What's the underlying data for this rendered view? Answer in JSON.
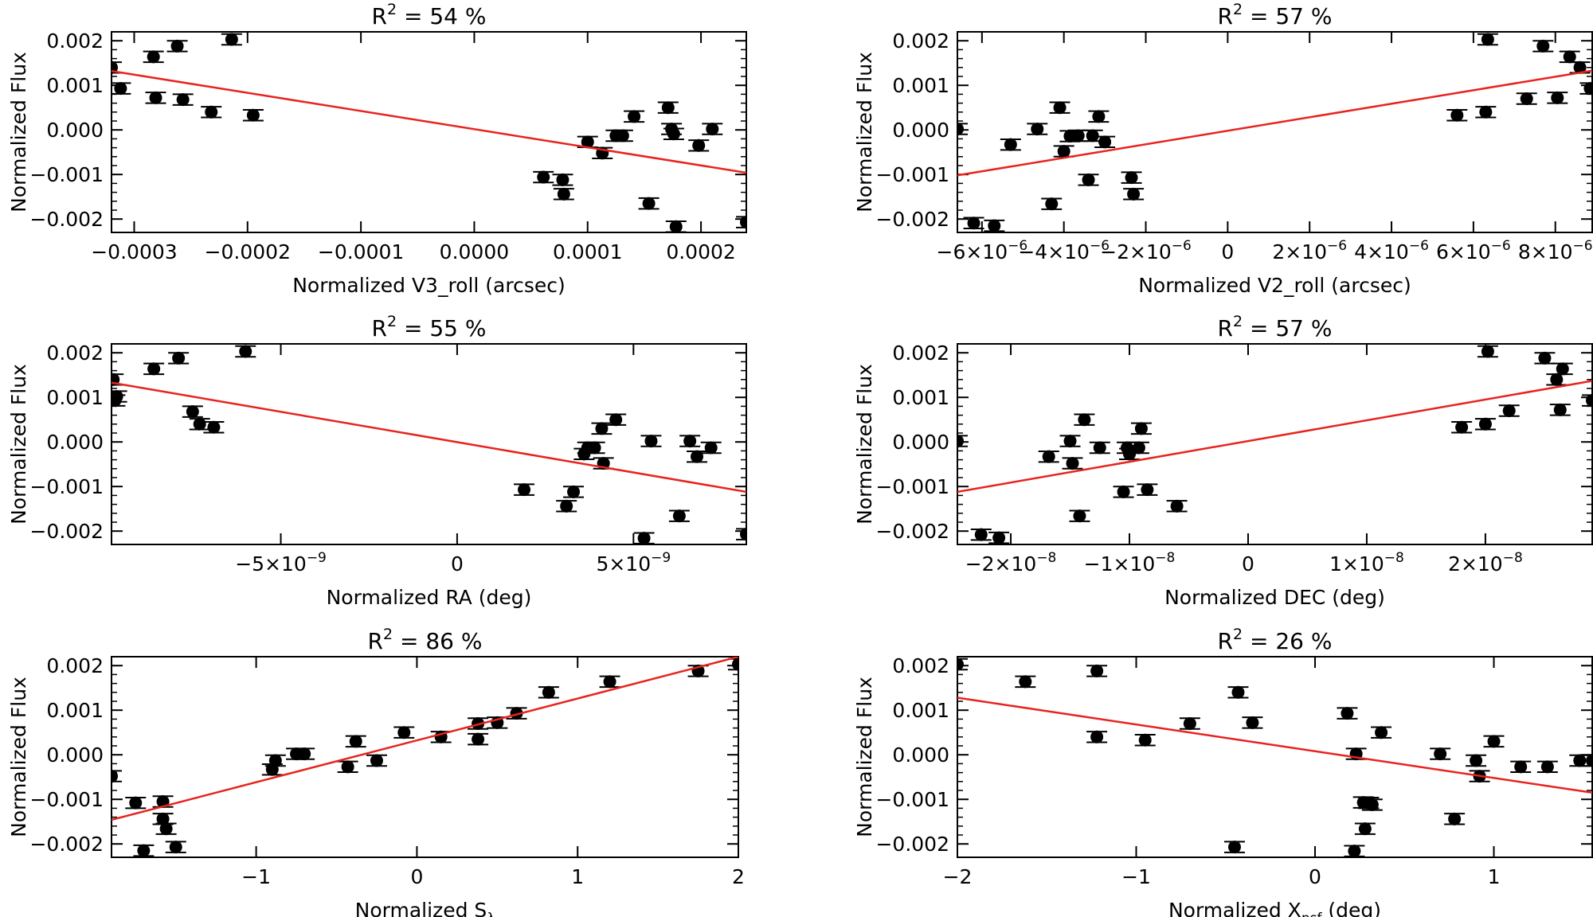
{
  "chart_data": [
    {
      "type": "scatter",
      "title": "R² = 54 %",
      "title_parts": {
        "pre": "R",
        "sup": "2",
        "post": " = 54 %"
      },
      "xlabel": "Normalized V3_roll (arcsec)",
      "xlabel_parts": {
        "pre": "Normalized V3_roll (arcsec)",
        "sub": "",
        "post": ""
      },
      "ylabel": "Normalized Flux",
      "xlim": [
        -0.00032,
        0.00024
      ],
      "ylim": [
        -0.0023,
        0.0022
      ],
      "xticks": [
        {
          "v": -0.0003,
          "label": "−0.0003"
        },
        {
          "v": -0.0002,
          "label": "−0.0002"
        },
        {
          "v": -0.0001,
          "label": "−0.0001"
        },
        {
          "v": 0.0,
          "label": "0.0000"
        },
        {
          "v": 0.0001,
          "label": "0.0001"
        },
        {
          "v": 0.0002,
          "label": "0.0002"
        }
      ],
      "yticks": [
        {
          "v": 0.002,
          "label": "0.002"
        },
        {
          "v": 0.001,
          "label": "0.001"
        },
        {
          "v": 0.0,
          "label": "0.000"
        },
        {
          "v": -0.001,
          "label": "−0.001"
        },
        {
          "v": -0.002,
          "label": "−0.002"
        }
      ],
      "points": [
        [
          -0.00032,
          0.0014
        ],
        [
          -0.000312,
          0.00093
        ],
        [
          -0.000283,
          0.00164
        ],
        [
          -0.000262,
          0.00188
        ],
        [
          -0.000281,
          0.00072
        ],
        [
          -0.000257,
          0.00068
        ],
        [
          -0.000232,
          0.0004
        ],
        [
          -0.000214,
          0.00203
        ],
        [
          -0.000195,
          0.00033
        ],
        [
          6.1e-05,
          -0.00106
        ],
        [
          7.8e-05,
          -0.00112
        ],
        [
          7.9e-05,
          -0.00144
        ],
        [
          0.0001,
          -0.00027
        ],
        [
          0.000113,
          -0.00052
        ],
        [
          0.000125,
          -0.00013
        ],
        [
          0.000131,
          -0.00013
        ],
        [
          0.000141,
          0.0003
        ],
        [
          0.000154,
          -0.00165
        ],
        [
          0.000171,
          0.0005
        ],
        [
          0.000174,
          2e-05
        ],
        [
          0.000176,
          -9e-05
        ],
        [
          0.000178,
          -0.00217
        ],
        [
          0.000198,
          -0.00035
        ],
        [
          0.00021,
          2e-05
        ],
        [
          0.00024,
          -0.00207
        ]
      ],
      "fit": [
        [
          -0.00032,
          0.00132
        ],
        [
          0.00024,
          -0.00096
        ]
      ],
      "colors": {
        "points": "#000000",
        "fit": "#e8231e"
      }
    },
    {
      "type": "scatter",
      "title": "R² = 57 %",
      "title_parts": {
        "pre": "R",
        "sup": "2",
        "post": " = 57 %"
      },
      "xlabel": "Normalized V2_roll (arcsec)",
      "xlabel_parts": {
        "pre": "Normalized V2_roll (arcsec)",
        "sub": "",
        "post": ""
      },
      "ylabel": "Normalized Flux",
      "xlim": [
        -6.6e-06,
        8.9e-06
      ],
      "ylim": [
        -0.0023,
        0.0022
      ],
      "xticks": [
        {
          "v": -6e-06,
          "label": "−6×10",
          "exp": "−6"
        },
        {
          "v": -4e-06,
          "label": "−4×10",
          "exp": "−6"
        },
        {
          "v": -2e-06,
          "label": "−2×10",
          "exp": "−6"
        },
        {
          "v": 0,
          "label": "0",
          "exp": ""
        },
        {
          "v": 2e-06,
          "label": "2×10",
          "exp": "−6"
        },
        {
          "v": 4e-06,
          "label": "4×10",
          "exp": "−6"
        },
        {
          "v": 6e-06,
          "label": "6×10",
          "exp": "−6"
        },
        {
          "v": 8e-06,
          "label": "8×10",
          "exp": "−6"
        }
      ],
      "yticks": [
        {
          "v": 0.002,
          "label": "0.002"
        },
        {
          "v": 0.001,
          "label": "0.001"
        },
        {
          "v": 0.0,
          "label": "0.000"
        },
        {
          "v": -0.001,
          "label": "−0.001"
        },
        {
          "v": -0.002,
          "label": "−0.002"
        }
      ],
      "points": [
        [
          -6.6e-06,
          2e-05
        ],
        [
          -6.2e-06,
          -0.00209
        ],
        [
          -5.7e-06,
          -0.00215
        ],
        [
          -5.3e-06,
          -0.00033
        ],
        [
          -4.65e-06,
          2e-05
        ],
        [
          -4.3e-06,
          -0.00166
        ],
        [
          -4.1e-06,
          0.0005
        ],
        [
          -4e-06,
          -0.00048
        ],
        [
          -3.85e-06,
          -0.00014
        ],
        [
          -3.65e-06,
          -0.00013
        ],
        [
          -3.4e-06,
          -0.00112
        ],
        [
          -3.3e-06,
          -0.00013
        ],
        [
          -3.15e-06,
          0.0003
        ],
        [
          -3e-06,
          -0.00027
        ],
        [
          -2.35e-06,
          -0.00107
        ],
        [
          -2.3e-06,
          -0.00144
        ],
        [
          5.6e-06,
          0.00033
        ],
        [
          6.3e-06,
          0.0004
        ],
        [
          6.35e-06,
          0.00203
        ],
        [
          7.3e-06,
          0.0007
        ],
        [
          7.7e-06,
          0.00188
        ],
        [
          8.05e-06,
          0.00072
        ],
        [
          8.35e-06,
          0.00164
        ],
        [
          8.6e-06,
          0.0014
        ],
        [
          8.85e-06,
          0.00093
        ]
      ],
      "fit": [
        [
          -6.6e-06,
          -0.00102
        ],
        [
          8.9e-06,
          0.00133
        ]
      ],
      "colors": {
        "points": "#000000",
        "fit": "#e8231e"
      }
    },
    {
      "type": "scatter",
      "title": "R² = 55 %",
      "title_parts": {
        "pre": "R",
        "sup": "2",
        "post": " = 55 %"
      },
      "xlabel": "Normalized RA (deg)",
      "xlabel_parts": {
        "pre": "Normalized RA (deg)",
        "sub": "",
        "post": ""
      },
      "ylabel": "Normalized Flux",
      "xlim": [
        -9.8e-09,
        8.2e-09
      ],
      "ylim": [
        -0.0023,
        0.0022
      ],
      "xticks": [
        {
          "v": -5e-09,
          "label": "−5×10",
          "exp": "−9"
        },
        {
          "v": 0,
          "label": "0",
          "exp": ""
        },
        {
          "v": 5e-09,
          "label": "5×10",
          "exp": "−9"
        }
      ],
      "yticks": [
        {
          "v": 0.002,
          "label": "0.002"
        },
        {
          "v": 0.001,
          "label": "0.001"
        },
        {
          "v": 0.0,
          "label": "0.000"
        },
        {
          "v": -0.001,
          "label": "−0.001"
        },
        {
          "v": -0.002,
          "label": "−0.002"
        }
      ],
      "points": [
        [
          -9.75e-09,
          0.0014
        ],
        [
          -9.7e-09,
          0.00093
        ],
        [
          -9.65e-09,
          0.00102
        ],
        [
          -8.6e-09,
          0.00164
        ],
        [
          -7.9e-09,
          0.00188
        ],
        [
          -7.5e-09,
          0.00068
        ],
        [
          -7.3e-09,
          0.0004
        ],
        [
          -6.9e-09,
          0.00033
        ],
        [
          -6e-09,
          0.00203
        ],
        [
          1.9e-09,
          -0.00107
        ],
        [
          3.1e-09,
          -0.00144
        ],
        [
          3.3e-09,
          -0.00112
        ],
        [
          3.6e-09,
          -0.00027
        ],
        [
          3.7e-09,
          -0.00013
        ],
        [
          3.9e-09,
          -0.00013
        ],
        [
          4.1e-09,
          0.0003
        ],
        [
          4.15e-09,
          -0.00048
        ],
        [
          4.5e-09,
          0.0005
        ],
        [
          5.3e-09,
          -0.00216
        ],
        [
          5.5e-09,
          2e-05
        ],
        [
          6.3e-09,
          -0.00166
        ],
        [
          6.6e-09,
          2e-05
        ],
        [
          6.8e-09,
          -0.00033
        ],
        [
          7.2e-09,
          -0.00013
        ],
        [
          8.2e-09,
          -0.00207
        ]
      ],
      "fit": [
        [
          -9.8e-09,
          0.00133
        ],
        [
          8.2e-09,
          -0.00112
        ]
      ],
      "colors": {
        "points": "#000000",
        "fit": "#e8231e"
      }
    },
    {
      "type": "scatter",
      "title": "R² = 57 %",
      "title_parts": {
        "pre": "R",
        "sup": "2",
        "post": " = 57 %"
      },
      "xlabel": "Normalized DEC (deg)",
      "xlabel_parts": {
        "pre": "Normalized DEC (deg)",
        "sub": "",
        "post": ""
      },
      "ylabel": "Normalized Flux",
      "xlim": [
        -2.45e-08,
        2.9e-08
      ],
      "ylim": [
        -0.0023,
        0.0022
      ],
      "xticks": [
        {
          "v": -2e-08,
          "label": "−2×10",
          "exp": "−8"
        },
        {
          "v": -1e-08,
          "label": "−1×10",
          "exp": "−8"
        },
        {
          "v": 0,
          "label": "0",
          "exp": ""
        },
        {
          "v": 1e-08,
          "label": "1×10",
          "exp": "−8"
        },
        {
          "v": 2e-08,
          "label": "2×10",
          "exp": "−8"
        }
      ],
      "yticks": [
        {
          "v": 0.002,
          "label": "0.002"
        },
        {
          "v": 0.001,
          "label": "0.001"
        },
        {
          "v": 0.0,
          "label": "0.000"
        },
        {
          "v": -0.001,
          "label": "−0.001"
        },
        {
          "v": -0.002,
          "label": "−0.002"
        }
      ],
      "points": [
        [
          -2.45e-08,
          2e-05
        ],
        [
          -2.25e-08,
          -0.00208
        ],
        [
          -2.1e-08,
          -0.00215
        ],
        [
          -1.68e-08,
          -0.00033
        ],
        [
          -1.5e-08,
          2e-05
        ],
        [
          -1.48e-08,
          -0.00048
        ],
        [
          -1.42e-08,
          -0.00166
        ],
        [
          -1.38e-08,
          0.0005
        ],
        [
          -1.25e-08,
          -0.00013
        ],
        [
          -1.05e-08,
          -0.00112
        ],
        [
          -1.02e-08,
          -0.00013
        ],
        [
          -1e-08,
          -0.00027
        ],
        [
          -9.2e-09,
          -0.00013
        ],
        [
          -9e-09,
          0.0003
        ],
        [
          -8.5e-09,
          -0.00107
        ],
        [
          -6e-09,
          -0.00144
        ],
        [
          1.8e-08,
          0.00033
        ],
        [
          2e-08,
          0.0004
        ],
        [
          2.02e-08,
          0.00203
        ],
        [
          2.2e-08,
          0.0007
        ],
        [
          2.5e-08,
          0.00188
        ],
        [
          2.6e-08,
          0.0014
        ],
        [
          2.63e-08,
          0.00072
        ],
        [
          2.65e-08,
          0.00164
        ],
        [
          2.9e-08,
          0.00093
        ]
      ],
      "fit": [
        [
          -2.45e-08,
          -0.00112
        ],
        [
          2.9e-08,
          0.00137
        ]
      ],
      "colors": {
        "points": "#000000",
        "fit": "#e8231e"
      }
    },
    {
      "type": "scatter",
      "title": "R² = 86 %",
      "title_parts": {
        "pre": "R",
        "sup": "2",
        "post": " = 86 %"
      },
      "xlabel": "Normalized Sλ",
      "xlabel_parts": {
        "pre": "Normalized S",
        "sub": "λ",
        "post": ""
      },
      "ylabel": "Normalized Flux",
      "xlim": [
        -1.9,
        2.0
      ],
      "ylim": [
        -0.0023,
        0.0022
      ],
      "xticks": [
        {
          "v": -1,
          "label": "−1"
        },
        {
          "v": 0,
          "label": "0"
        },
        {
          "v": 1,
          "label": "1"
        },
        {
          "v": 2,
          "label": "2"
        }
      ],
      "yticks": [
        {
          "v": 0.002,
          "label": "0.002"
        },
        {
          "v": 0.001,
          "label": "0.001"
        },
        {
          "v": 0.0,
          "label": "0.000"
        },
        {
          "v": -0.001,
          "label": "−0.001"
        },
        {
          "v": -0.002,
          "label": "−0.002"
        }
      ],
      "points": [
        [
          -1.9,
          -0.00048
        ],
        [
          -1.75,
          -0.00108
        ],
        [
          -1.7,
          -0.00215
        ],
        [
          -1.58,
          -0.00105
        ],
        [
          -1.58,
          -0.00144
        ],
        [
          -1.56,
          -0.00166
        ],
        [
          -1.5,
          -0.00207
        ],
        [
          -0.9,
          -0.00033
        ],
        [
          -0.88,
          -0.00013
        ],
        [
          -0.75,
          2e-05
        ],
        [
          -0.7,
          2e-05
        ],
        [
          -0.43,
          -0.00027
        ],
        [
          -0.38,
          0.0003
        ],
        [
          -0.25,
          -0.00013
        ],
        [
          -0.08,
          0.0005
        ],
        [
          0.15,
          0.0004
        ],
        [
          0.38,
          0.00035
        ],
        [
          0.38,
          0.0007
        ],
        [
          0.5,
          0.00072
        ],
        [
          0.62,
          0.00093
        ],
        [
          0.82,
          0.0014
        ],
        [
          1.2,
          0.00164
        ],
        [
          1.75,
          0.00188
        ],
        [
          2.0,
          0.00203
        ]
      ],
      "fit": [
        [
          -1.9,
          -0.00146
        ],
        [
          2.0,
          0.0022
        ]
      ],
      "colors": {
        "points": "#000000",
        "fit": "#e8231e"
      }
    },
    {
      "type": "scatter",
      "title": "R² = 26 %",
      "title_parts": {
        "pre": "R",
        "sup": "2",
        "post": " = 26 %"
      },
      "xlabel": "Normalized Xpsf (deg)",
      "xlabel_parts": {
        "pre": "Normalized X",
        "sub": "psf",
        "post": " (deg)"
      },
      "ylabel": "Normalized Flux",
      "xlim": [
        -2.0,
        1.55
      ],
      "ylim": [
        -0.0023,
        0.0022
      ],
      "xticks": [
        {
          "v": -2,
          "label": "−2"
        },
        {
          "v": -1,
          "label": "−1"
        },
        {
          "v": 0,
          "label": "0"
        },
        {
          "v": 1,
          "label": "1"
        }
      ],
      "yticks": [
        {
          "v": 0.002,
          "label": "0.002"
        },
        {
          "v": 0.001,
          "label": "0.001"
        },
        {
          "v": 0.0,
          "label": "0.000"
        },
        {
          "v": -0.001,
          "label": "−0.001"
        },
        {
          "v": -0.002,
          "label": "−0.002"
        }
      ],
      "points": [
        [
          -2.0,
          0.00203
        ],
        [
          -1.62,
          0.00164
        ],
        [
          -1.22,
          0.00188
        ],
        [
          -1.22,
          0.0004
        ],
        [
          -0.95,
          0.00033
        ],
        [
          -0.7,
          0.0007
        ],
        [
          -0.45,
          -0.00207
        ],
        [
          -0.43,
          0.0014
        ],
        [
          -0.35,
          0.00072
        ],
        [
          0.18,
          0.00093
        ],
        [
          0.22,
          -0.00216
        ],
        [
          0.23,
          2e-05
        ],
        [
          0.27,
          -0.00107
        ],
        [
          0.28,
          -0.00166
        ],
        [
          0.3,
          -0.00108
        ],
        [
          0.32,
          -0.00112
        ],
        [
          0.37,
          0.0005
        ],
        [
          0.7,
          2e-05
        ],
        [
          0.78,
          -0.00144
        ],
        [
          0.9,
          -0.00013
        ],
        [
          0.92,
          -0.00048
        ],
        [
          1.0,
          0.0003
        ],
        [
          1.15,
          -0.00027
        ],
        [
          1.3,
          -0.00027
        ],
        [
          1.48,
          -0.00013
        ],
        [
          1.55,
          -0.00013
        ]
      ],
      "fit": [
        [
          -2.0,
          0.00128
        ],
        [
          1.55,
          -0.00085
        ]
      ],
      "colors": {
        "points": "#000000",
        "fit": "#e8231e"
      }
    }
  ]
}
